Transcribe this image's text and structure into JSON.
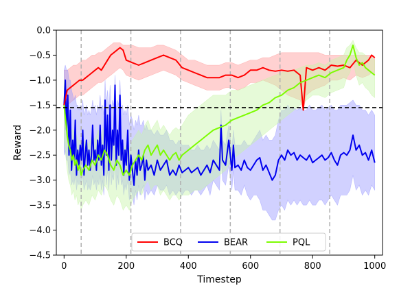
{
  "chart_data": {
    "type": "line",
    "title": "",
    "xlabel": "Timestep",
    "ylabel": "Reward",
    "xlim": [
      -25,
      1025
    ],
    "ylim": [
      -4.5,
      0.0
    ],
    "xticks": [
      0,
      200,
      400,
      600,
      800,
      1000
    ],
    "yticks": [
      -4.5,
      -4.0,
      -3.5,
      -3.0,
      -2.5,
      -2.0,
      -1.5,
      -1.0,
      -0.5,
      0.0
    ],
    "xtick_labels": [
      "0",
      "200",
      "400",
      "600",
      "800",
      "1000"
    ],
    "ytick_labels": [
      "−4.5",
      "−4.0",
      "−3.5",
      "−3.0",
      "−2.5",
      "−2.0",
      "−1.5",
      "−1.0",
      "−0.5",
      "0.0"
    ],
    "grid": false,
    "legend_position": "bottom-center",
    "reference_line": {
      "y": -1.55,
      "style": "dashed",
      "color": "#000000"
    },
    "vertical_lines": {
      "x": [
        55,
        215,
        375,
        535,
        695,
        855
      ],
      "style": "dashed",
      "color": "#b0b0b0"
    },
    "series": [
      {
        "name": "BCQ",
        "color": "#ff0000",
        "band_color": "#ff9a9a",
        "x": [
          0,
          10,
          20,
          30,
          40,
          50,
          60,
          70,
          80,
          90,
          100,
          110,
          120,
          130,
          140,
          150,
          160,
          170,
          180,
          190,
          200,
          220,
          240,
          260,
          280,
          300,
          320,
          340,
          360,
          380,
          400,
          420,
          440,
          460,
          480,
          500,
          520,
          540,
          560,
          580,
          600,
          620,
          640,
          660,
          680,
          700,
          720,
          740,
          760,
          770,
          780,
          800,
          820,
          840,
          860,
          880,
          900,
          920,
          940,
          960,
          980,
          990,
          1000
        ],
        "y": [
          -1.5,
          -1.2,
          -1.15,
          -1.1,
          -1.05,
          -1.0,
          -1.0,
          -0.95,
          -0.9,
          -0.85,
          -0.8,
          -0.75,
          -0.8,
          -0.7,
          -0.6,
          -0.5,
          -0.45,
          -0.4,
          -0.35,
          -0.4,
          -0.6,
          -0.65,
          -0.7,
          -0.65,
          -0.6,
          -0.55,
          -0.5,
          -0.55,
          -0.6,
          -0.75,
          -0.8,
          -0.85,
          -0.9,
          -0.95,
          -0.95,
          -0.95,
          -0.9,
          -0.9,
          -0.95,
          -0.9,
          -0.8,
          -0.8,
          -0.75,
          -0.8,
          -0.82,
          -0.8,
          -0.82,
          -0.8,
          -0.9,
          -1.6,
          -0.75,
          -0.8,
          -0.75,
          -0.8,
          -0.7,
          -0.72,
          -0.7,
          -0.75,
          -0.6,
          -0.7,
          -0.6,
          -0.5,
          -0.55
        ],
        "band_upper": [
          -0.8,
          -0.8,
          -0.75,
          -0.7,
          -0.7,
          -0.65,
          -0.6,
          -0.6,
          -0.55,
          -0.5,
          -0.5,
          -0.45,
          -0.45,
          -0.4,
          -0.35,
          -0.3,
          -0.25,
          -0.25,
          -0.25,
          -0.3,
          -0.3,
          -0.3,
          -0.35,
          -0.35,
          -0.35,
          -0.3,
          -0.3,
          -0.35,
          -0.4,
          -0.5,
          -0.6,
          -0.6,
          -0.65,
          -0.7,
          -0.7,
          -0.7,
          -0.65,
          -0.65,
          -0.7,
          -0.65,
          -0.6,
          -0.6,
          -0.55,
          -0.55,
          -0.5,
          -0.45,
          -0.45,
          -0.45,
          -0.45,
          -0.45,
          -0.45,
          -0.45,
          -0.45,
          -0.5,
          -0.5,
          -0.5,
          -0.5,
          -0.5,
          -0.5,
          -0.5,
          -0.5,
          -0.5,
          -0.55
        ],
        "band_lower": [
          -1.6,
          -1.5,
          -1.45,
          -1.4,
          -1.35,
          -1.3,
          -1.3,
          -1.25,
          -1.2,
          -1.15,
          -1.1,
          -1.05,
          -1.05,
          -1.0,
          -0.95,
          -0.9,
          -0.85,
          -0.8,
          -0.75,
          -0.8,
          -0.9,
          -0.95,
          -1.0,
          -0.95,
          -0.9,
          -0.85,
          -0.8,
          -0.85,
          -0.9,
          -1.0,
          -1.05,
          -1.1,
          -1.15,
          -1.2,
          -1.2,
          -1.2,
          -1.15,
          -1.15,
          -1.2,
          -1.15,
          -1.05,
          -1.05,
          -1.0,
          -1.05,
          -1.1,
          -1.2,
          -1.3,
          -1.35,
          -1.4,
          -1.6,
          -1.3,
          -1.2,
          -1.15,
          -1.1,
          -1.0,
          -1.0,
          -0.95,
          -1.0,
          -0.9,
          -0.95,
          -0.9,
          -0.85,
          -0.9
        ]
      },
      {
        "name": "BEAR",
        "color": "#0000ee",
        "band_color": "#9a9aff",
        "x": [
          0,
          4,
          8,
          12,
          16,
          20,
          24,
          28,
          32,
          36,
          40,
          44,
          48,
          52,
          56,
          60,
          64,
          68,
          72,
          76,
          80,
          84,
          88,
          92,
          96,
          100,
          104,
          108,
          112,
          116,
          120,
          124,
          128,
          132,
          136,
          140,
          144,
          148,
          152,
          156,
          160,
          164,
          168,
          172,
          176,
          180,
          184,
          188,
          192,
          196,
          200,
          205,
          210,
          215,
          220,
          225,
          230,
          235,
          240,
          245,
          250,
          255,
          260,
          265,
          270,
          280,
          290,
          300,
          310,
          320,
          330,
          340,
          350,
          360,
          370,
          380,
          390,
          400,
          410,
          420,
          430,
          440,
          450,
          460,
          470,
          480,
          490,
          500,
          505,
          510,
          520,
          530,
          540,
          545,
          550,
          560,
          570,
          580,
          590,
          600,
          610,
          620,
          630,
          640,
          650,
          660,
          670,
          680,
          690,
          700,
          710,
          720,
          730,
          740,
          750,
          760,
          770,
          780,
          790,
          800,
          810,
          820,
          830,
          840,
          850,
          860,
          870,
          880,
          890,
          900,
          910,
          920,
          930,
          940,
          950,
          960,
          970,
          980,
          990,
          1000
        ],
        "y": [
          -1.5,
          -1.0,
          -2.0,
          -1.3,
          -2.5,
          -1.6,
          -2.8,
          -2.2,
          -2.6,
          -1.8,
          -2.9,
          -2.4,
          -2.7,
          -2.3,
          -2.6,
          -2.0,
          -2.9,
          -2.5,
          -2.2,
          -2.7,
          -2.4,
          -2.8,
          -2.5,
          -1.9,
          -2.6,
          -2.4,
          -2.8,
          -2.2,
          -2.6,
          -1.9,
          -2.7,
          -2.3,
          -2.9,
          -1.4,
          -2.5,
          -1.7,
          -2.8,
          -1.5,
          -2.6,
          -2.0,
          -2.3,
          -1.1,
          -2.7,
          -2.0,
          -2.5,
          -1.3,
          -2.6,
          -2.2,
          -2.9,
          -2.4,
          -2.7,
          -2.0,
          -3.0,
          -2.5,
          -2.8,
          -3.1,
          -2.6,
          -2.9,
          -2.4,
          -2.8,
          -2.7,
          -2.5,
          -3.0,
          -2.6,
          -2.8,
          -2.7,
          -2.9,
          -2.6,
          -2.8,
          -2.7,
          -2.6,
          -2.9,
          -2.8,
          -2.9,
          -2.7,
          -2.85,
          -2.8,
          -2.75,
          -2.85,
          -2.8,
          -2.75,
          -2.9,
          -2.8,
          -2.7,
          -2.85,
          -2.6,
          -2.7,
          -2.8,
          -1.9,
          -2.6,
          -2.7,
          -2.2,
          -2.8,
          -2.3,
          -2.75,
          -2.7,
          -2.8,
          -2.6,
          -2.75,
          -2.8,
          -2.7,
          -2.6,
          -2.55,
          -2.8,
          -2.7,
          -2.85,
          -3.0,
          -2.9,
          -2.6,
          -2.5,
          -2.6,
          -2.4,
          -2.5,
          -2.45,
          -2.6,
          -2.5,
          -2.55,
          -2.6,
          -2.5,
          -2.65,
          -2.6,
          -2.55,
          -2.5,
          -2.6,
          -2.55,
          -2.45,
          -2.6,
          -2.7,
          -2.5,
          -2.45,
          -2.5,
          -2.4,
          -2.1,
          -2.4,
          -2.3,
          -2.5,
          -2.45,
          -2.6,
          -2.4,
          -2.65
        ],
        "band_upper": [
          -0.8,
          -0.7,
          -0.8,
          -0.8,
          -1.0,
          -1.0,
          -1.2,
          -1.3,
          -1.4,
          -1.3,
          -1.5,
          -1.5,
          -1.6,
          -1.5,
          -1.6,
          -1.4,
          -1.7,
          -1.6,
          -1.5,
          -1.7,
          -1.6,
          -1.7,
          -1.6,
          -1.4,
          -1.6,
          -1.5,
          -1.7,
          -1.5,
          -1.6,
          -1.3,
          -1.6,
          -1.5,
          -1.7,
          -1.0,
          -1.5,
          -1.2,
          -1.6,
          -1.1,
          -1.6,
          -1.4,
          -1.5,
          -0.9,
          -1.6,
          -1.4,
          -1.5,
          -1.0,
          -1.6,
          -1.5,
          -1.7,
          -1.6,
          -1.7,
          -1.5,
          -1.9,
          -1.7,
          -1.8,
          -2.0,
          -1.8,
          -1.9,
          -1.7,
          -1.9,
          -1.9,
          -1.8,
          -2.0,
          -1.9,
          -2.0,
          -2.0,
          -2.1,
          -2.0,
          -2.1,
          -2.1,
          -2.0,
          -2.2,
          -2.2,
          -2.3,
          -2.2,
          -2.3,
          -2.3,
          -2.3,
          -2.4,
          -2.4,
          -2.3,
          -2.4,
          -2.4,
          -2.3,
          -2.4,
          -2.2,
          -2.3,
          -2.4,
          -1.6,
          -2.2,
          -2.3,
          -1.9,
          -2.4,
          -2.0,
          -2.3,
          -2.3,
          -2.3,
          -2.2,
          -2.3,
          -2.3,
          -2.2,
          -2.1,
          -2.0,
          -2.2,
          -2.1,
          -2.2,
          -2.2,
          -2.1,
          -1.8,
          -1.6,
          -1.6,
          -1.5,
          -1.6,
          -1.55,
          -1.6,
          -1.55,
          -1.6,
          -1.6,
          -1.5,
          -1.6,
          -1.6,
          -1.55,
          -1.5,
          -1.6,
          -1.55,
          -1.5,
          -1.6,
          -1.6,
          -1.5,
          -1.5,
          -1.5,
          -1.45,
          -1.4,
          -1.5,
          -1.5,
          -1.6,
          -1.6,
          -1.7,
          -1.6,
          -1.7
        ],
        "band_lower": [
          -2.5,
          -2.4,
          -2.6,
          -2.6,
          -2.9,
          -2.8,
          -3.1,
          -3.0,
          -3.1,
          -2.9,
          -3.2,
          -3.0,
          -3.1,
          -3.0,
          -3.1,
          -2.9,
          -3.2,
          -3.1,
          -3.0,
          -3.2,
          -3.1,
          -3.2,
          -3.1,
          -2.9,
          -3.1,
          -3.0,
          -3.2,
          -3.0,
          -3.1,
          -2.9,
          -3.2,
          -3.0,
          -3.3,
          -2.7,
          -3.1,
          -2.8,
          -3.2,
          -2.7,
          -3.1,
          -2.9,
          -3.0,
          -2.5,
          -3.2,
          -2.9,
          -3.1,
          -2.6,
          -3.1,
          -3.0,
          -3.3,
          -3.1,
          -3.2,
          -3.0,
          -3.4,
          -3.2,
          -3.3,
          -3.5,
          -3.2,
          -3.4,
          -3.1,
          -3.3,
          -3.2,
          -3.1,
          -3.4,
          -3.2,
          -3.3,
          -3.2,
          -3.3,
          -3.1,
          -3.2,
          -3.2,
          -3.1,
          -3.3,
          -3.2,
          -3.3,
          -3.2,
          -3.3,
          -3.2,
          -3.2,
          -3.3,
          -3.2,
          -3.2,
          -3.3,
          -3.2,
          -3.1,
          -3.3,
          -3.0,
          -3.1,
          -3.2,
          -2.5,
          -3.0,
          -3.1,
          -2.7,
          -3.2,
          -2.8,
          -3.2,
          -3.2,
          -3.3,
          -3.1,
          -3.3,
          -3.4,
          -3.3,
          -3.3,
          -3.4,
          -3.6,
          -3.6,
          -3.7,
          -3.8,
          -3.8,
          -3.6,
          -3.5,
          -3.6,
          -3.4,
          -3.5,
          -3.4,
          -3.5,
          -3.4,
          -3.5,
          -3.5,
          -3.4,
          -3.5,
          -3.5,
          -3.4,
          -3.4,
          -3.5,
          -3.4,
          -3.3,
          -3.4,
          -3.5,
          -3.3,
          -3.3,
          -3.3,
          -3.2,
          -2.9,
          -3.2,
          -3.1,
          -3.3,
          -3.2,
          -3.3,
          -3.1,
          -3.2
        ]
      },
      {
        "name": "PQL",
        "color": "#7cfc00",
        "band_color": "#c8f5a8",
        "x": [
          0,
          5,
          10,
          15,
          20,
          25,
          30,
          35,
          40,
          45,
          50,
          55,
          60,
          70,
          80,
          90,
          100,
          110,
          120,
          130,
          140,
          150,
          160,
          170,
          180,
          190,
          200,
          210,
          220,
          230,
          240,
          250,
          260,
          270,
          280,
          290,
          300,
          310,
          320,
          330,
          340,
          350,
          360,
          370,
          380,
          390,
          400,
          420,
          440,
          460,
          480,
          500,
          520,
          540,
          560,
          580,
          600,
          620,
          640,
          660,
          680,
          700,
          720,
          740,
          760,
          780,
          800,
          820,
          840,
          860,
          880,
          900,
          910,
          920,
          930,
          940,
          950,
          960,
          970,
          980,
          990,
          1000
        ],
        "y": [
          -1.5,
          -1.8,
          -2.1,
          -2.3,
          -2.4,
          -2.6,
          -2.5,
          -2.7,
          -2.6,
          -2.8,
          -2.7,
          -2.9,
          -2.8,
          -2.7,
          -2.8,
          -2.6,
          -2.7,
          -2.5,
          -2.6,
          -2.4,
          -2.5,
          -2.7,
          -2.8,
          -2.6,
          -2.7,
          -2.9,
          -2.8,
          -2.9,
          -2.7,
          -2.6,
          -2.5,
          -2.6,
          -2.4,
          -2.3,
          -2.5,
          -2.4,
          -2.3,
          -2.5,
          -2.4,
          -2.5,
          -2.6,
          -2.5,
          -2.45,
          -2.6,
          -2.5,
          -2.45,
          -2.4,
          -2.3,
          -2.2,
          -2.1,
          -2.0,
          -1.95,
          -1.9,
          -1.8,
          -1.75,
          -1.7,
          -1.65,
          -1.6,
          -1.5,
          -1.45,
          -1.35,
          -1.3,
          -1.2,
          -1.15,
          -1.05,
          -1.0,
          -0.95,
          -0.9,
          -0.95,
          -0.85,
          -0.8,
          -0.75,
          -0.6,
          -0.5,
          -0.3,
          -0.55,
          -0.7,
          -0.65,
          -0.75,
          -0.8,
          -0.85,
          -0.9
        ],
        "band_upper": [
          -1.0,
          -1.3,
          -1.6,
          -1.8,
          -1.9,
          -2.0,
          -2.0,
          -2.1,
          -2.1,
          -2.2,
          -2.2,
          -2.3,
          -2.3,
          -2.2,
          -2.3,
          -2.1,
          -2.2,
          -2.0,
          -2.1,
          -1.9,
          -2.0,
          -2.2,
          -2.3,
          -2.1,
          -2.2,
          -2.4,
          -2.3,
          -2.4,
          -2.2,
          -2.1,
          -2.0,
          -2.1,
          -1.9,
          -1.8,
          -2.0,
          -1.9,
          -1.8,
          -2.0,
          -1.9,
          -2.0,
          -2.1,
          -2.0,
          -1.95,
          -2.0,
          -1.9,
          -1.8,
          -1.7,
          -1.6,
          -1.5,
          -1.4,
          -1.3,
          -1.3,
          -1.3,
          -1.2,
          -1.2,
          -1.15,
          -1.1,
          -1.05,
          -1.0,
          -0.95,
          -0.9,
          -0.85,
          -0.8,
          -0.8,
          -0.75,
          -0.7,
          -0.7,
          -0.65,
          -0.7,
          -0.6,
          -0.55,
          -0.5,
          -0.35,
          -0.3,
          -0.2,
          -0.35,
          -0.45,
          -0.45,
          -0.5,
          -0.55,
          -0.55,
          -0.6
        ],
        "band_lower": [
          -2.2,
          -2.5,
          -2.8,
          -3.0,
          -3.1,
          -3.3,
          -3.2,
          -3.4,
          -3.3,
          -3.5,
          -3.4,
          -3.6,
          -3.5,
          -3.4,
          -3.5,
          -3.3,
          -3.4,
          -3.2,
          -3.3,
          -3.1,
          -3.2,
          -3.4,
          -3.5,
          -3.3,
          -3.4,
          -3.6,
          -3.5,
          -3.6,
          -3.4,
          -3.3,
          -3.2,
          -3.3,
          -3.1,
          -3.0,
          -3.2,
          -3.1,
          -3.1,
          -3.3,
          -3.2,
          -3.3,
          -3.4,
          -3.3,
          -3.3,
          -3.4,
          -3.3,
          -3.3,
          -3.3,
          -3.2,
          -3.2,
          -3.1,
          -3.0,
          -2.9,
          -2.8,
          -2.6,
          -2.5,
          -2.4,
          -2.3,
          -2.2,
          -2.1,
          -2.0,
          -1.9,
          -1.8,
          -1.7,
          -1.6,
          -1.5,
          -1.4,
          -1.3,
          -1.3,
          -1.35,
          -1.25,
          -1.2,
          -1.15,
          -0.95,
          -0.85,
          -0.6,
          -0.9,
          -1.1,
          -1.05,
          -1.15,
          -1.2,
          -1.3,
          -1.35
        ]
      }
    ]
  }
}
